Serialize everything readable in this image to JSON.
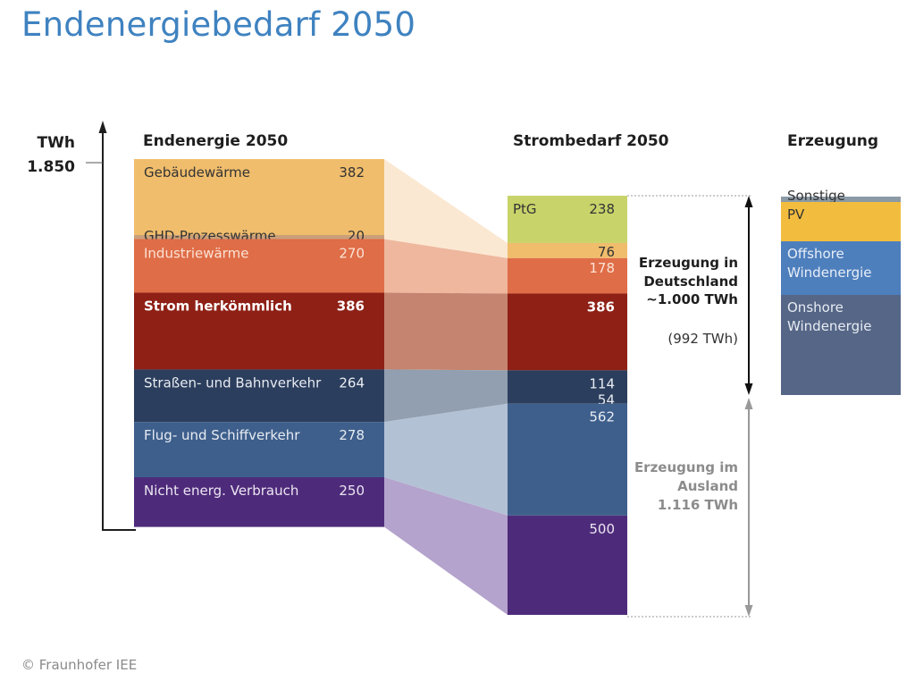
{
  "title": "Endenergiebedarf 2050",
  "footer": "© Fraunhofer IEE",
  "chart_data": {
    "type": "stacked-bar-flow",
    "unit": "TWh",
    "axis": {
      "label": "TWh",
      "tick_label": "1.850",
      "tick_value": 1850
    },
    "columns": [
      {
        "key": "endenergie",
        "header": "Endenergie 2050",
        "segments": [
          {
            "label": "Gebäudewärme",
            "value": 382,
            "display": "382",
            "color": "#f0bd6c",
            "text_color": "#333333",
            "bold": false
          },
          {
            "label": "GHD-Prozesswärme",
            "value": 20,
            "display": "20",
            "color": "#c9a07a",
            "text_color": "#333333",
            "bold": false
          },
          {
            "label": "Industriewärme",
            "value": 270,
            "display": "270",
            "color": "#df6d47",
            "text_color": "#fbe3d6",
            "bold": false
          },
          {
            "label": "Strom herkömmlich",
            "value": 386,
            "display": "386",
            "color": "#8e2016",
            "text_color": "#ffffff",
            "bold": true
          },
          {
            "label": "Straßen- und Bahnverkehr",
            "value": 264,
            "display": "264",
            "color": "#2c3e5d",
            "text_color": "#e8ecf2",
            "bold": false
          },
          {
            "label": "Flug- und Schiffverkehr",
            "value": 278,
            "display": "278",
            "color": "#3e5f8c",
            "text_color": "#e8ecf2",
            "bold": false
          },
          {
            "label": "Nicht energ. Verbrauch",
            "value": 250,
            "display": "250",
            "color": "#4e2b7a",
            "text_color": "#ece6f3",
            "bold": false
          }
        ]
      },
      {
        "key": "strombedarf",
        "header": "Strombedarf 2050",
        "segments": [
          {
            "label": "PtG",
            "value": 238,
            "display": "238",
            "color": "#c8d46a",
            "text_color": "#333333",
            "bold": false
          },
          {
            "label": "",
            "value": 76,
            "display": "76",
            "color": "#f0bd6c",
            "text_color": "#333333",
            "bold": false
          },
          {
            "label": "",
            "value": 178,
            "display": "178",
            "color": "#df6d47",
            "text_color": "#fbe3d6",
            "bold": false
          },
          {
            "label": "",
            "value": 386,
            "display": "386",
            "color": "#8e2016",
            "text_color": "#ffffff",
            "bold": true
          },
          {
            "label": "",
            "value": 168,
            "display": "114\n54",
            "parts": [
              114,
              54
            ],
            "color": "#2c3e5d",
            "text_color": "#e8ecf2",
            "bold": false
          },
          {
            "label": "",
            "value": 562,
            "display": "562",
            "color": "#3e5f8c",
            "text_color": "#e8ecf2",
            "bold": false
          },
          {
            "label": "",
            "value": 500,
            "display": "500",
            "color": "#4e2b7a",
            "text_color": "#ece6f3",
            "bold": false
          }
        ]
      },
      {
        "key": "erzeugung",
        "header": "Erzeugung",
        "segments": [
          {
            "label": "Sonstige",
            "color": "#8c9aa6",
            "text_color": "#333333"
          },
          {
            "label": "PV",
            "color": "#f2bd3e",
            "text_color": "#333333"
          },
          {
            "label": "Offshore\nWindenergie",
            "color": "#4e7fbd",
            "text_color": "#e8eef7"
          },
          {
            "label": "Onshore\nWindenergie",
            "color": "#556687",
            "text_color": "#e8ecf2"
          }
        ]
      }
    ],
    "flows": [
      {
        "from": "Gebäudewärme + GHD-Prozesswärme",
        "to": "76 (Wärme)",
        "color": "#fbe8d2"
      },
      {
        "from": "Industriewärme",
        "to": "178",
        "color": "#eeb79e"
      },
      {
        "from": "Strom herkömmlich",
        "to": "386",
        "color": "#c5846f"
      },
      {
        "from": "Straßen- und Bahnverkehr",
        "to": "114 / 54",
        "color": "#919fb0"
      },
      {
        "from": "Flug- und Schiffverkehr",
        "to": "562",
        "color": "#b3c1d5"
      },
      {
        "from": "Nicht energ. Verbrauch",
        "to": "500",
        "color": "#b4a3cc"
      }
    ],
    "annotations": {
      "domestic": {
        "lines": [
          "Erzeugung in",
          "Deutschland",
          "~1.000 TWh"
        ],
        "sub": "(992 TWh)",
        "color": "#1e1e1e"
      },
      "abroad": {
        "lines": [
          "Erzeugung im",
          "Ausland",
          "1.116 TWh"
        ],
        "color": "#8c8c8c"
      }
    }
  }
}
